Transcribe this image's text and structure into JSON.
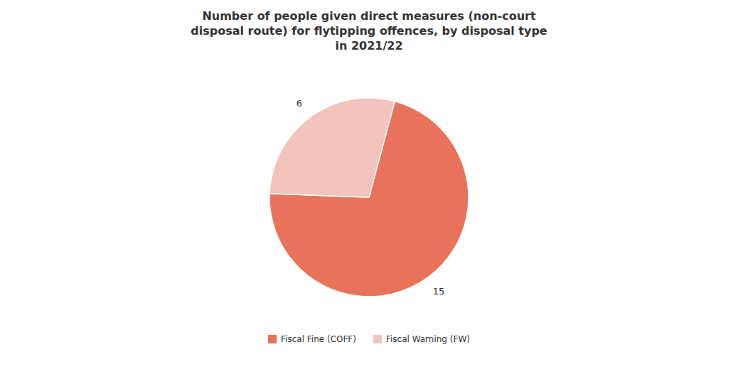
{
  "chart_data": {
    "type": "pie",
    "title": "Number of people given direct measures (non-court\ndisposal route) for flytipping offences, by disposal type\nin 2021/22",
    "categories": [
      "Fiscal Fine (COFF)",
      "Fiscal Warning (FW)"
    ],
    "values": [
      15,
      6
    ],
    "colors": [
      "#e8735a",
      "#f2c4bb"
    ],
    "data_labels": true,
    "legend": "bottom"
  }
}
